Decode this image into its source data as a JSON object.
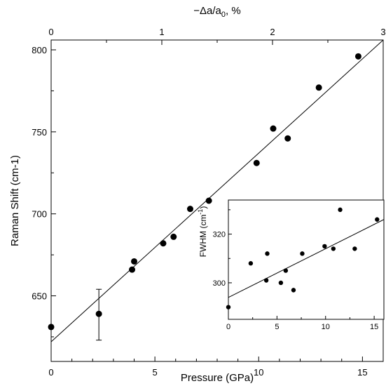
{
  "chart_data": [
    {
      "type": "scatter",
      "xlabel": "Pressure (GPa)",
      "ylabel": "Raman Shift (cm-1)",
      "top_xlabel": "−Δa/a",
      "top_xlabel_sub": "0",
      "top_xlabel_suffix": ", %",
      "xlim": [
        0,
        16
      ],
      "ylim": [
        610,
        806
      ],
      "top_xlim": [
        0,
        3
      ],
      "xticks": [
        0,
        5,
        10,
        15
      ],
      "yticks": [
        650,
        700,
        750,
        800
      ],
      "top_xticks": [
        0,
        1,
        2,
        3
      ],
      "xtick_labels": [
        "0",
        "5",
        "10",
        "15"
      ],
      "ytick_labels": [
        "650",
        "700",
        "750",
        "800"
      ],
      "top_xtick_labels": [
        "0",
        "1",
        "2",
        "3"
      ],
      "grid": false,
      "points": [
        {
          "x": 0.0,
          "y": 631
        },
        {
          "x": 2.3,
          "y": 639
        },
        {
          "x": 3.9,
          "y": 666
        },
        {
          "x": 4.0,
          "y": 671
        },
        {
          "x": 5.4,
          "y": 682
        },
        {
          "x": 5.9,
          "y": 686
        },
        {
          "x": 6.7,
          "y": 703
        },
        {
          "x": 7.6,
          "y": 708
        },
        {
          "x": 9.9,
          "y": 731
        },
        {
          "x": 10.7,
          "y": 752
        },
        {
          "x": 11.4,
          "y": 746
        },
        {
          "x": 12.9,
          "y": 777
        },
        {
          "x": 14.8,
          "y": 796
        }
      ],
      "error_bars": [
        {
          "x": 2.3,
          "y": 639,
          "low": 623,
          "high": 654
        }
      ],
      "fit_line": {
        "x": [
          0,
          16
        ],
        "y": [
          622,
          806
        ]
      }
    },
    {
      "type": "scatter",
      "inset": true,
      "ylabel": "FWHM (cm",
      "ylabel_sup": "-1",
      "ylabel_suffix": ")",
      "xlim": [
        0,
        16
      ],
      "ylim": [
        285,
        334
      ],
      "xticks": [
        0,
        5,
        10,
        15
      ],
      "yticks": [
        300,
        320
      ],
      "xtick_labels": [
        "0",
        "5",
        "10",
        "15"
      ],
      "ytick_labels": [
        "300",
        "320"
      ],
      "grid": false,
      "points": [
        {
          "x": 0.0,
          "y": 290
        },
        {
          "x": 2.3,
          "y": 308
        },
        {
          "x": 3.9,
          "y": 301
        },
        {
          "x": 4.0,
          "y": 312
        },
        {
          "x": 5.4,
          "y": 300
        },
        {
          "x": 5.9,
          "y": 305
        },
        {
          "x": 6.7,
          "y": 297
        },
        {
          "x": 7.6,
          "y": 312
        },
        {
          "x": 9.9,
          "y": 315
        },
        {
          "x": 10.8,
          "y": 314
        },
        {
          "x": 11.5,
          "y": 330
        },
        {
          "x": 13.0,
          "y": 314
        },
        {
          "x": 15.3,
          "y": 326
        }
      ],
      "fit_line": {
        "x": [
          0,
          16
        ],
        "y": [
          294,
          326
        ]
      }
    }
  ]
}
